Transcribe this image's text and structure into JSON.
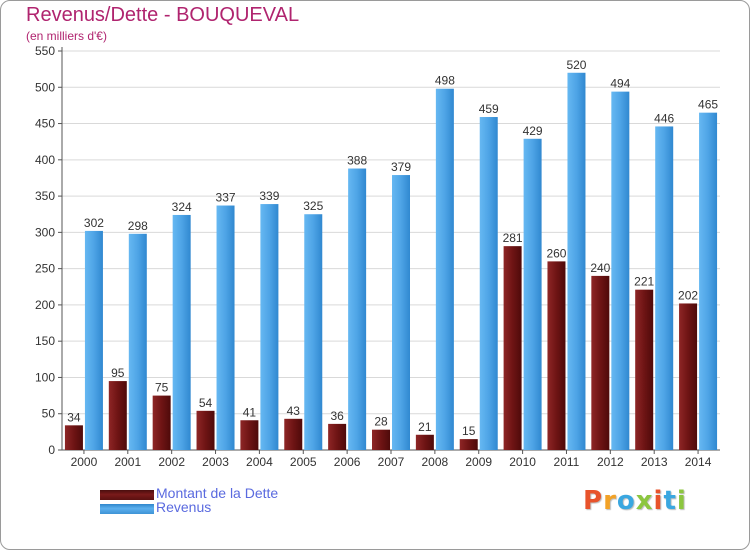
{
  "title": "Revenus/Dette - BOUQUEVAL",
  "subtitle": "(en milliers d'€)",
  "logo_text": "Proxiti",
  "colors": {
    "title": "#b0246f",
    "dette": "#7a1a1a",
    "revenus": "#4fa3e4",
    "legend_text": "#5a6adf",
    "grid": "#d9d9d9",
    "axis": "#555555"
  },
  "legend": [
    {
      "label": "Montant de la Dette",
      "color": "#7a1a1a"
    },
    {
      "label": "Revenus",
      "color": "#4fa3e4"
    }
  ],
  "chart_data": {
    "type": "bar",
    "categories": [
      "2000",
      "2001",
      "2002",
      "2003",
      "2004",
      "2005",
      "2006",
      "2007",
      "2008",
      "2009",
      "2010",
      "2011",
      "2012",
      "2013",
      "2014"
    ],
    "series": [
      {
        "name": "Montant de la Dette",
        "color": "#7a1a1a",
        "values": [
          34,
          95,
          75,
          54,
          41,
          43,
          36,
          28,
          21,
          15,
          281,
          260,
          240,
          221,
          202
        ]
      },
      {
        "name": "Revenus",
        "color": "#4fa3e4",
        "values": [
          302,
          298,
          324,
          337,
          339,
          325,
          388,
          379,
          498,
          459,
          429,
          520,
          494,
          446,
          465
        ]
      }
    ],
    "yticks": [
      0,
      50,
      100,
      150,
      200,
      250,
      300,
      350,
      400,
      450,
      500,
      550
    ],
    "ylim": [
      0,
      550
    ],
    "grid": true,
    "legend_position": "bottom-left"
  }
}
